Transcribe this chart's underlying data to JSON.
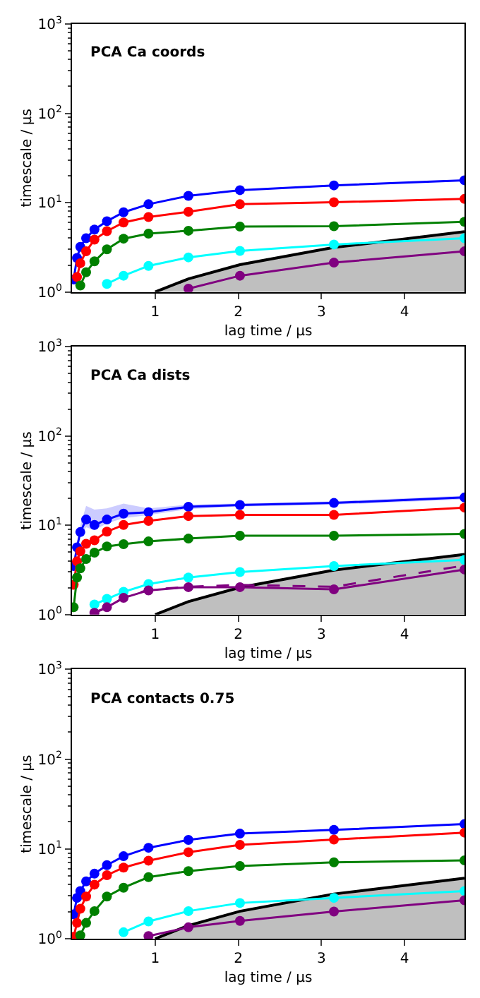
{
  "chart_data": [
    {
      "type": "line",
      "title": "PCA Ca coords",
      "xlabel": "lag time / μs",
      "ylabel": "timescale / μs",
      "log": "y",
      "marker": "circle",
      "line_style": "solid",
      "x": [
        0.02,
        0.06,
        0.1,
        0.17,
        0.27,
        0.42,
        0.62,
        0.92,
        1.4,
        2.02,
        3.15,
        4.72
      ],
      "xlim": [
        0,
        4.72
      ],
      "xticks": [
        1,
        2,
        3,
        4
      ],
      "ylim": [
        1,
        1000
      ],
      "yticks": [
        {
          "value": 1,
          "label": "10$^{0}$"
        },
        {
          "value": 10,
          "label": "10$^{1}$"
        },
        {
          "value": 100,
          "label": "10$^{2}$"
        },
        {
          "value": 1000,
          "label": "10$^{3}$"
        }
      ],
      "series": [
        {
          "type": "area",
          "color": "#000000",
          "marker": "none",
          "x": [
            1,
            1.4,
            2.02,
            3.15,
            4.72
          ],
          "values": [
            1,
            1.4,
            2.02,
            3.15,
            4.72
          ]
        },
        {
          "color": "#0000ff",
          "values": [
            1.38,
            2.4,
            3.2,
            4.0,
            5.0,
            6.2,
            7.8,
            9.6,
            11.9,
            13.8,
            15.6,
            17.8
          ]
        },
        {
          "color": "#ff0000",
          "values": [
            null,
            1.47,
            2.1,
            2.85,
            3.85,
            4.8,
            6.0,
            6.9,
            7.9,
            9.6,
            10.1,
            11.0
          ]
        },
        {
          "color": "#008000",
          "values": [
            null,
            null,
            1.18,
            1.66,
            2.2,
            3.0,
            3.95,
            4.5,
            4.85,
            5.4,
            5.45,
            6.1
          ]
        },
        {
          "color": "#00ffff",
          "values": [
            null,
            null,
            null,
            null,
            null,
            1.23,
            1.52,
            1.96,
            2.44,
            2.88,
            3.4,
            4.0
          ]
        },
        {
          "color": "#800080",
          "values": [
            null,
            null,
            null,
            null,
            null,
            null,
            null,
            null,
            1.09,
            1.52,
            2.13,
            2.85
          ]
        }
      ]
    },
    {
      "type": "line",
      "title": "PCA Ca dists",
      "xlabel": "lag time / μs",
      "ylabel": "timescale / μs",
      "log": "y",
      "marker": "circle",
      "line_style": "solid",
      "x": [
        0.02,
        0.06,
        0.1,
        0.17,
        0.27,
        0.42,
        0.62,
        0.92,
        1.4,
        2.02,
        3.15,
        4.72
      ],
      "xlim": [
        0,
        4.72
      ],
      "xticks": [
        1,
        2,
        3,
        4
      ],
      "ylim": [
        1,
        1000
      ],
      "yticks": [
        {
          "value": 1,
          "label": "10$^{0}$"
        },
        {
          "value": 10,
          "label": "10$^{1}$"
        },
        {
          "value": 100,
          "label": "10$^{2}$"
        },
        {
          "value": 1000,
          "label": "10$^{3}$"
        }
      ],
      "series": [
        {
          "type": "area",
          "color": "#000000",
          "marker": "none",
          "x": [
            1,
            1.4,
            2.02,
            3.15,
            4.72
          ],
          "values": [
            1,
            1.4,
            2.02,
            3.15,
            4.72
          ]
        },
        {
          "color": "#0000ff",
          "values": [
            3.5,
            5.66,
            8.4,
            11.6,
            10.1,
            11.6,
            13.5,
            14.0,
            16.1,
            16.9,
            17.8,
            20.5
          ],
          "lower": [
            3.2,
            5.0,
            7.5,
            9.5,
            8.8,
            10.5,
            12.0,
            13.0,
            15.2,
            16.2,
            17.0,
            19.5
          ],
          "upper": [
            3.9,
            6.5,
            10.0,
            16.5,
            15.0,
            15.5,
            17.5,
            15.5,
            17.0,
            17.6,
            18.6,
            21.5
          ]
        },
        {
          "color": "#ff0000",
          "values": [
            2.16,
            3.95,
            5.1,
            6.2,
            6.8,
            8.5,
            10.1,
            11.2,
            12.7,
            13.1,
            13.1,
            15.8
          ]
        },
        {
          "color": "#008000",
          "values": [
            1.21,
            2.6,
            3.3,
            4.2,
            4.95,
            5.8,
            6.15,
            6.6,
            7.1,
            7.65,
            7.65,
            8.0
          ]
        },
        {
          "color": "#00ffff",
          "values": [
            null,
            null,
            null,
            null,
            1.3,
            1.5,
            1.8,
            2.2,
            2.6,
            3.0,
            3.5,
            4.1
          ]
        },
        {
          "color": "#800080",
          "values": [
            null,
            null,
            null,
            null,
            1.05,
            1.21,
            1.54,
            1.87,
            2.03,
            2.03,
            1.92,
            3.2
          ]
        },
        {
          "color": "#800080",
          "line_style": "dashed",
          "marker": "none",
          "values": [
            null,
            null,
            null,
            null,
            1.05,
            1.2,
            1.55,
            1.9,
            2.05,
            2.15,
            2.05,
            3.55
          ]
        }
      ]
    },
    {
      "type": "line",
      "title": "PCA contacts 0.75",
      "xlabel": "lag time / μs",
      "ylabel": "timescale / μs",
      "log": "y",
      "marker": "circle",
      "line_style": "solid",
      "x": [
        0.02,
        0.06,
        0.1,
        0.17,
        0.27,
        0.42,
        0.62,
        0.92,
        1.4,
        2.02,
        3.15,
        4.72
      ],
      "xlim": [
        0,
        4.72
      ],
      "xticks": [
        1,
        2,
        3,
        4
      ],
      "ylim": [
        1,
        1000
      ],
      "yticks": [
        {
          "value": 1,
          "label": "10$^{0}$"
        },
        {
          "value": 10,
          "label": "10$^{1}$"
        },
        {
          "value": 100,
          "label": "10$^{2}$"
        },
        {
          "value": 1000,
          "label": "10$^{3}$"
        }
      ],
      "series": [
        {
          "type": "area",
          "color": "#000000",
          "marker": "none",
          "x": [
            1,
            1.4,
            2.02,
            3.15,
            4.72
          ],
          "values": [
            1,
            1.4,
            2.02,
            3.15,
            4.72
          ]
        },
        {
          "color": "#0000ff",
          "values": [
            1.87,
            2.85,
            3.4,
            4.35,
            5.3,
            6.6,
            8.3,
            10.3,
            12.6,
            14.8,
            16.3,
            18.9
          ]
        },
        {
          "color": "#ff0000",
          "values": [
            1.05,
            1.5,
            2.16,
            2.95,
            4.0,
            5.1,
            6.2,
            7.4,
            9.2,
            11.1,
            12.7,
            15.2
          ]
        },
        {
          "color": "#008000",
          "values": [
            null,
            null,
            1.09,
            1.5,
            2.03,
            2.95,
            3.7,
            4.85,
            5.66,
            6.45,
            7.1,
            7.45
          ]
        },
        {
          "color": "#00ffff",
          "values": [
            null,
            null,
            null,
            null,
            null,
            null,
            1.18,
            1.56,
            2.03,
            2.5,
            2.85,
            3.4
          ]
        },
        {
          "color": "#800080",
          "values": [
            null,
            null,
            null,
            null,
            null,
            null,
            null,
            1.07,
            1.34,
            1.58,
            2.01,
            2.68
          ]
        }
      ]
    }
  ]
}
